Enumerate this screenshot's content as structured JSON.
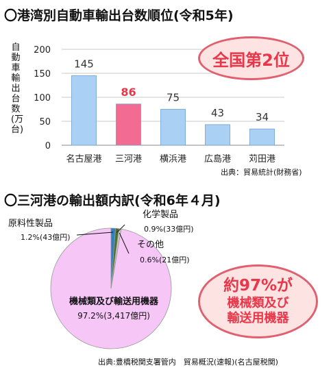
{
  "bar_section": {
    "title": "〇港湾別自動車輸出台数順位(令和5年)",
    "badge": "全国第2位",
    "source": "出典：貿易統計(財務省)"
  },
  "pie_section": {
    "title": "〇三河港の輸出額内訳(令和6年４月)",
    "badge_line1": "約97%が",
    "badge_line2": "機械類及び",
    "badge_line3": "輸送用機器",
    "source": "出典:豊橋税関支署管内　貿易概況(速報)(名古屋税関)",
    "slice_labels": [
      {
        "name": "機械類及び輸送用機器",
        "detail": "97.2%(3,417億円)"
      },
      {
        "name": "原料性製品",
        "detail": "1.2%(43億円)"
      },
      {
        "name": "化学製品",
        "detail": "0.9%(33億円)"
      },
      {
        "name": "その他",
        "detail": "0.6%(21億円)"
      }
    ]
  },
  "chart_data": [
    {
      "type": "bar",
      "title": "〇港湾別自動車輸出台数順位(令和5年)",
      "ylabel": "自動車輸出台数(万台)",
      "categories": [
        "名古屋港",
        "三河港",
        "横浜港",
        "広島港",
        "苅田港"
      ],
      "values": [
        145,
        86,
        75,
        43,
        34
      ],
      "value_labels": [
        "145",
        "86",
        "75",
        "43",
        "34"
      ],
      "ylim": [
        0,
        200
      ],
      "yticks": [
        0,
        50,
        100,
        150,
        200
      ],
      "grid": true,
      "colors": [
        "#aad0f4",
        "#f26b93",
        "#aad0f4",
        "#aad0f4",
        "#aad0f4"
      ],
      "highlight_label_color": "#e8374a"
    },
    {
      "type": "pie",
      "title": "〇三河港の輸出額内訳(令和6年４月)",
      "labels": [
        "機械類及び輸送用機器",
        "原料性製品",
        "化学製品",
        "その他"
      ],
      "values": [
        97.2,
        1.2,
        0.9,
        0.6
      ],
      "amounts_oku_yen": [
        3417,
        43,
        33,
        21
      ],
      "colors": [
        "#f6c6f6",
        "#2f7fc1",
        "#4b6f2a",
        "#c7c7c7"
      ]
    }
  ]
}
